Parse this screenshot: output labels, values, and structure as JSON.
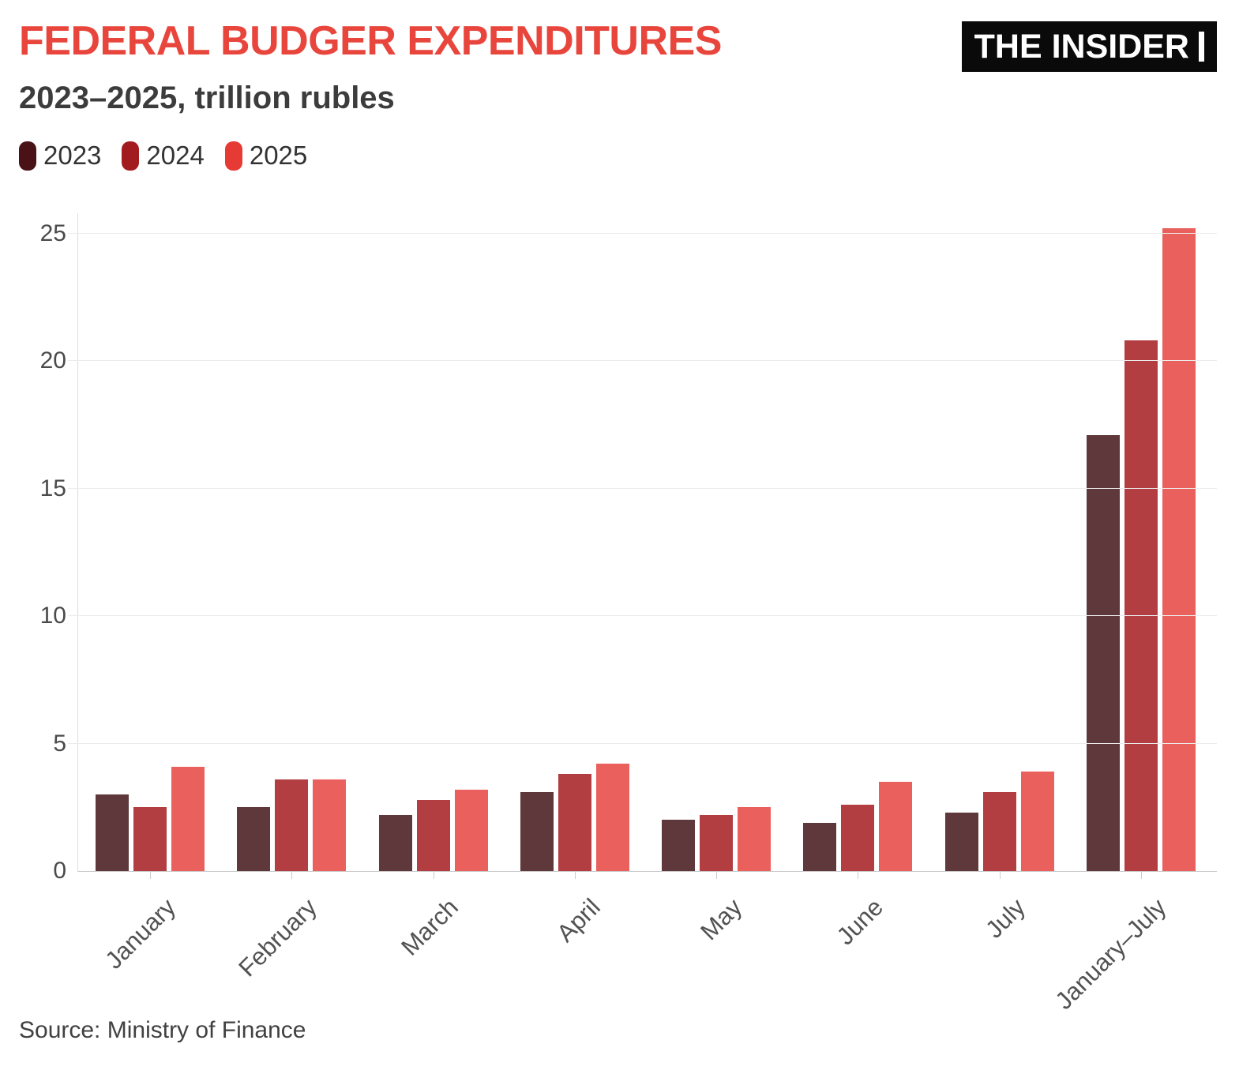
{
  "header": {
    "title": "FEDERAL BUDGER EXPENDITURES",
    "title_color": "#e8463c",
    "subtitle": "2023–2025, trillion rubles",
    "logo": {
      "text": "THE INSIDER",
      "background_color": "#0a0a0a",
      "text_color": "#ffffff"
    }
  },
  "footer": {
    "source": "Source: Ministry of Finance"
  },
  "chart_data": {
    "type": "bar",
    "title": "FEDERAL BUDGER EXPENDITURES",
    "subtitle": "2023–2025, trillion rubles",
    "xlabel": "",
    "ylabel": "trillion rubles",
    "categories": [
      "January",
      "February",
      "March",
      "April",
      "May",
      "June",
      "July",
      "January–July"
    ],
    "series": [
      {
        "name": "2023",
        "legend_color": "#4a1216",
        "bar_color": "#5e383b",
        "values": [
          3.0,
          2.5,
          2.2,
          3.1,
          2.0,
          1.9,
          2.3,
          17.1
        ]
      },
      {
        "name": "2024",
        "legend_color": "#a21b1f",
        "bar_color": "#b23e42",
        "values": [
          2.5,
          3.6,
          2.8,
          3.8,
          2.2,
          2.6,
          3.1,
          20.8
        ]
      },
      {
        "name": "2025",
        "legend_color": "#e63a35",
        "bar_color": "#e9605d",
        "values": [
          4.1,
          3.6,
          3.2,
          4.2,
          2.5,
          3.5,
          3.9,
          25.2
        ]
      }
    ],
    "y_ticks": [
      0,
      5,
      10,
      15,
      20,
      25
    ],
    "ylim": [
      0,
      25.8
    ],
    "grid": true,
    "legend_position": "top-left"
  }
}
